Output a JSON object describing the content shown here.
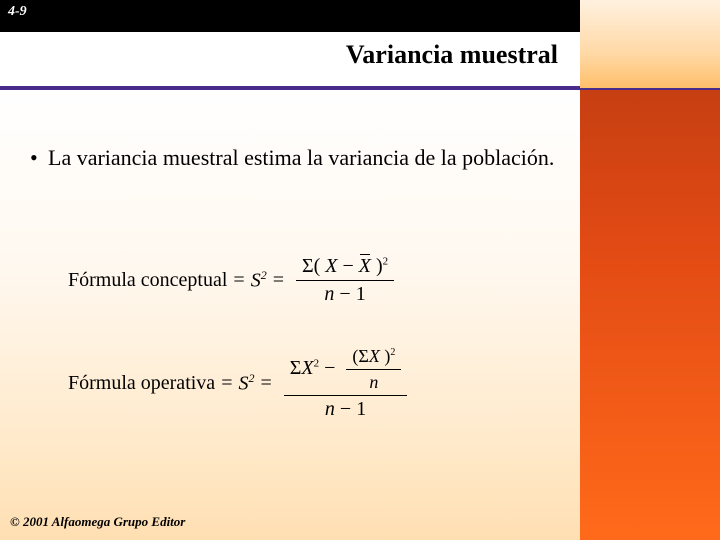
{
  "header": {
    "slide_number": "4-9",
    "title": "Variancia muestral"
  },
  "body": {
    "bullet_text": "La variancia muestral estima la variancia de la población."
  },
  "formulas": {
    "conceptual": {
      "label": "Fórmula conceptual",
      "symbol_html": "S",
      "num": "Σ( X − X )",
      "den": "n − 1"
    },
    "operativa": {
      "label": "Fórmula operativa",
      "symbol_html": "S",
      "inner_num": "(ΣX )",
      "inner_den": "n",
      "left_term": "ΣX",
      "den": "n − 1"
    }
  },
  "footer": {
    "copyright": "© 2001 Alfaomega Grupo Editor"
  },
  "colors": {
    "rule": "#4a2a8a",
    "orange_grad_top": "#c63f12",
    "orange_grad_bottom": "#ff6a1a",
    "cream_top": "#fff1e0",
    "cream_bottom": "#ffbf6b",
    "bg_bottom": "#ffdfb2"
  }
}
